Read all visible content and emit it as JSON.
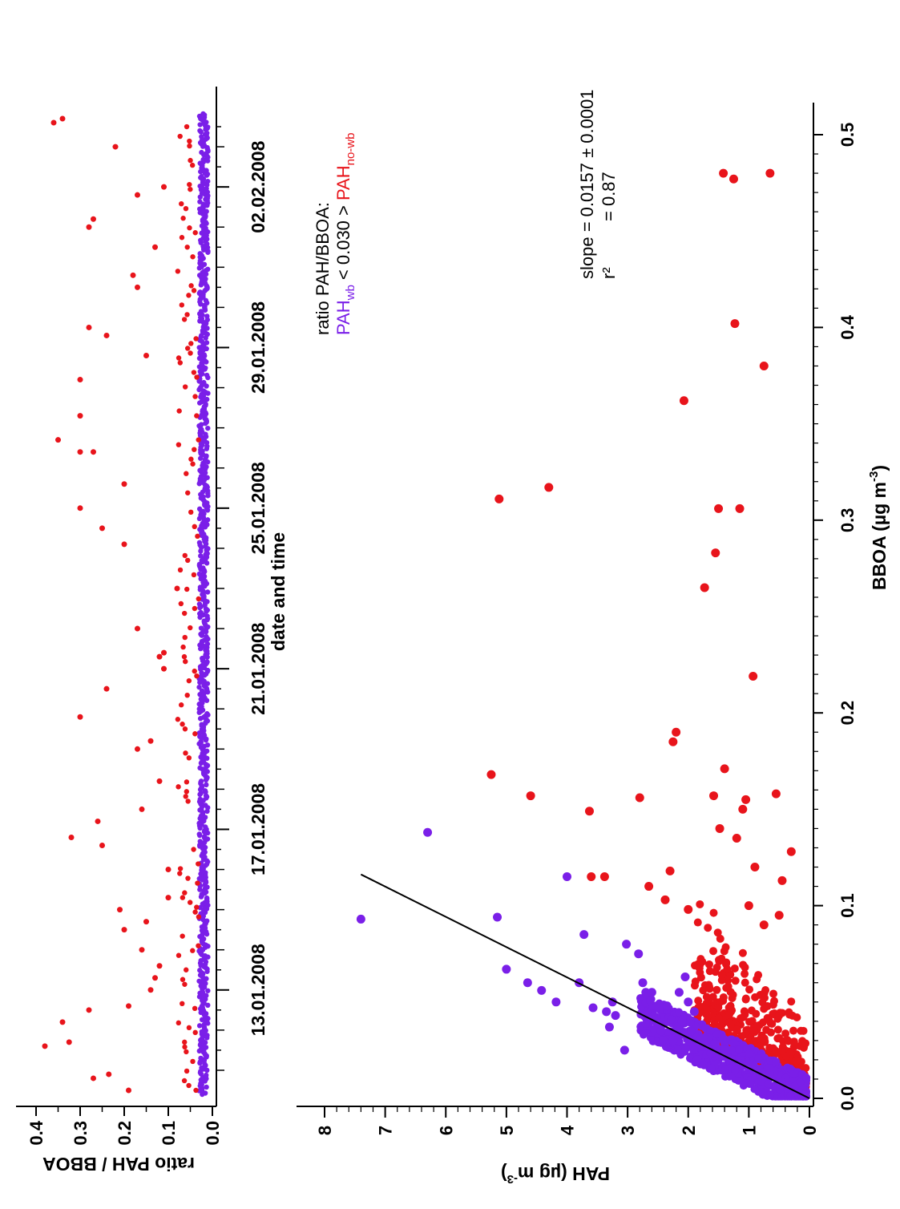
{
  "chart_data": [
    {
      "type": "scatter",
      "name": "ratio time series",
      "xlabel": "date and time",
      "ylabel": "ratio PAH / BBOA",
      "ylim": [
        0,
        0.4
      ],
      "yticks": [
        "0.0",
        "0.1",
        "0.2",
        "0.3",
        "0.4"
      ],
      "xticks": [
        "13.01.2008",
        "17.01.2008",
        "21.01.2008",
        "25.01.2008",
        "29.01.2008",
        "02.02.2008"
      ],
      "xrange_days": [
        10.3,
        34.9
      ],
      "series": [
        {
          "color": "#7a1fe8",
          "band": [
            0.01,
            0.03
          ]
        },
        {
          "color": "#e8141b",
          "points": [
            [
              10.8,
              0.27
            ],
            [
              10.9,
              0.235
            ],
            [
              10.5,
              0.19
            ],
            [
              11.6,
              0.38
            ],
            [
              11.7,
              0.325
            ],
            [
              12.2,
              0.34
            ],
            [
              12.5,
              0.28
            ],
            [
              12.6,
              0.19
            ],
            [
              13.0,
              0.14
            ],
            [
              13.3,
              0.13
            ],
            [
              13.6,
              0.12
            ],
            [
              14.0,
              0.16
            ],
            [
              14.5,
              0.2
            ],
            [
              14.7,
              0.15
            ],
            [
              15.0,
              0.21
            ],
            [
              15.3,
              0.1
            ],
            [
              16.0,
              0.1
            ],
            [
              16.6,
              0.25
            ],
            [
              16.8,
              0.32
            ],
            [
              17.2,
              0.26
            ],
            [
              17.5,
              0.16
            ],
            [
              18.2,
              0.12
            ],
            [
              19.0,
              0.17
            ],
            [
              19.2,
              0.14
            ],
            [
              19.8,
              0.3
            ],
            [
              20.5,
              0.24
            ],
            [
              21.0,
              0.11
            ],
            [
              21.3,
              0.12
            ],
            [
              21.4,
              0.11
            ],
            [
              22.0,
              0.17
            ],
            [
              23.0,
              0.08
            ],
            [
              24.1,
              0.2
            ],
            [
              24.5,
              0.25
            ],
            [
              25.0,
              0.3
            ],
            [
              25.6,
              0.2
            ],
            [
              26.4,
              0.3
            ],
            [
              26.4,
              0.27
            ],
            [
              26.7,
              0.35
            ],
            [
              27.3,
              0.3
            ],
            [
              28.2,
              0.3
            ],
            [
              28.8,
              0.15
            ],
            [
              29.3,
              0.24
            ],
            [
              29.5,
              0.28
            ],
            [
              30.5,
              0.17
            ],
            [
              30.8,
              0.18
            ],
            [
              31.5,
              0.13
            ],
            [
              32.0,
              0.28
            ],
            [
              32.2,
              0.27
            ],
            [
              32.8,
              0.17
            ],
            [
              33.0,
              0.11
            ],
            [
              34.0,
              0.22
            ],
            [
              34.6,
              0.36
            ],
            [
              34.7,
              0.34
            ]
          ]
        }
      ]
    },
    {
      "type": "scatter",
      "name": "PAH vs BBOA",
      "xlabel": "BBOA (µg m",
      "xlabel_sup": "-3",
      "xlabel_close": ")",
      "ylabel": "PAH (µg m",
      "ylabel_sup": "-3",
      "ylabel_close": ")",
      "xlim": [
        0,
        8
      ],
      "ylim": [
        0,
        0.5
      ],
      "xticks": [
        "0",
        "1",
        "2",
        "3",
        "4",
        "5",
        "6",
        "7",
        "8"
      ],
      "yticks": [
        "0.0",
        "0.1",
        "0.2",
        "0.3",
        "0.4",
        "0.5"
      ],
      "fit": {
        "slope": 0.0157,
        "x_range": [
          0,
          7.4
        ]
      },
      "series": [
        {
          "color": "#7a1fe8",
          "points": [
            [
              7.4,
              0.093
            ],
            [
              6.3,
              0.138
            ],
            [
              5.15,
              0.094
            ],
            [
              5.0,
              0.067
            ],
            [
              4.65,
              0.06
            ],
            [
              4.42,
              0.056
            ],
            [
              4.18,
              0.05
            ],
            [
              4.0,
              0.115
            ],
            [
              3.8,
              0.06
            ],
            [
              3.72,
              0.085
            ],
            [
              3.57,
              0.047
            ],
            [
              3.35,
              0.045
            ],
            [
              3.3,
              0.037
            ],
            [
              3.25,
              0.05
            ],
            [
              3.2,
              0.043
            ],
            [
              3.05,
              0.025
            ],
            [
              3.02,
              0.08
            ],
            [
              2.82,
              0.075
            ],
            [
              2.75,
              0.06
            ],
            [
              2.7,
              0.055
            ],
            [
              2.6,
              0.055
            ],
            [
              2.55,
              0.04
            ],
            [
              2.45,
              0.035
            ],
            [
              2.35,
              0.048
            ],
            [
              2.25,
              0.03
            ],
            [
              2.15,
              0.055
            ],
            [
              2.1,
              0.04
            ],
            [
              2.05,
              0.063
            ],
            [
              2.0,
              0.05
            ],
            [
              1.95,
              0.035
            ],
            [
              1.9,
              0.045
            ],
            [
              1.85,
              0.02
            ]
          ],
          "cluster": {
            "x_range": [
              0.05,
              2.8
            ],
            "spread": 0.022
          }
        },
        {
          "color": "#e8141b",
          "points": [
            [
              0.65,
              0.48
            ],
            [
              1.42,
              0.48
            ],
            [
              1.25,
              0.477
            ],
            [
              0.75,
              0.38
            ],
            [
              1.23,
              0.402
            ],
            [
              2.07,
              0.362
            ],
            [
              4.3,
              0.317
            ],
            [
              5.12,
              0.311
            ],
            [
              1.5,
              0.306
            ],
            [
              1.15,
              0.306
            ],
            [
              1.55,
              0.283
            ],
            [
              1.73,
              0.265
            ],
            [
              0.93,
              0.219
            ],
            [
              2.2,
              0.19
            ],
            [
              2.25,
              0.185
            ],
            [
              1.4,
              0.171
            ],
            [
              5.25,
              0.168
            ],
            [
              4.6,
              0.157
            ],
            [
              1.58,
              0.157
            ],
            [
              2.8,
              0.156
            ],
            [
              1.05,
              0.155
            ],
            [
              1.1,
              0.15
            ],
            [
              3.63,
              0.149
            ],
            [
              1.48,
              0.14
            ],
            [
              2.3,
              0.118
            ],
            [
              3.6,
              0.115
            ],
            [
              3.38,
              0.115
            ],
            [
              2.65,
              0.11
            ],
            [
              2.38,
              0.103
            ],
            [
              2.0,
              0.098
            ],
            [
              0.3,
              0.128
            ],
            [
              0.45,
              0.113
            ],
            [
              0.55,
              0.158
            ],
            [
              1.2,
              0.135
            ],
            [
              0.9,
              0.12
            ],
            [
              1.0,
              0.1
            ],
            [
              0.75,
              0.09
            ],
            [
              0.5,
              0.095
            ]
          ],
          "cluster": {
            "x_range": [
              0.05,
              1.9
            ],
            "spread": 0.07
          }
        }
      ]
    }
  ],
  "annotations": {
    "ratio_title": "ratio PAH/BBOA:",
    "pah_wb_base": "PAH",
    "pah_wb_sub": "wb",
    "threshold": " < 0.030 > ",
    "pah_nowb_base": "PAH",
    "pah_nowb_sub": "no-wb",
    "slope_text": "slope = 0.0157 ± 0.0001",
    "r2_label": "r²",
    "r2_value": "= 0.87"
  }
}
